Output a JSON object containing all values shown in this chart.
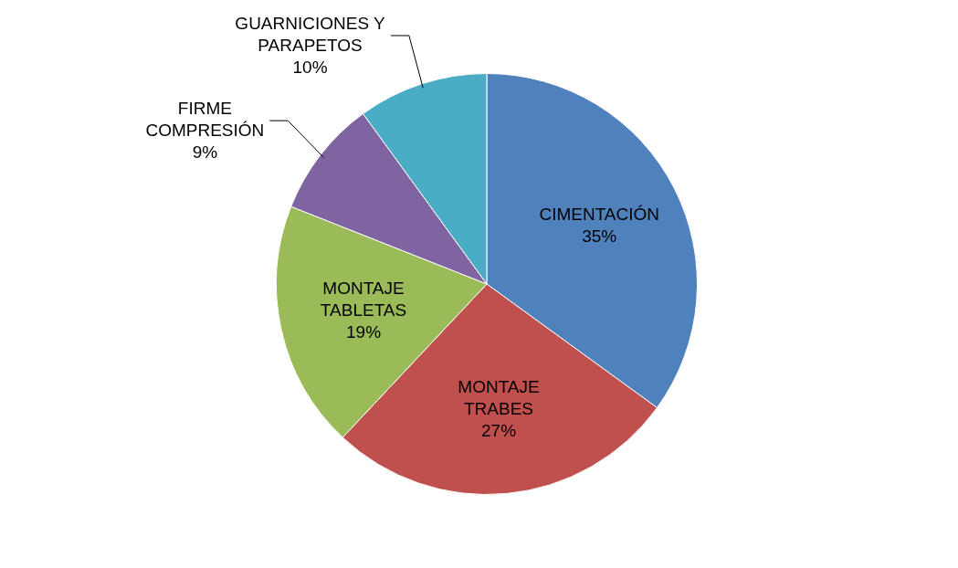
{
  "chart_data": {
    "type": "pie",
    "categories": [
      "CIMENTACIÓN",
      "MONTAJE TRABES",
      "MONTAJE TABLETAS",
      "FIRME COMPRESIÓN",
      "GUARNICIONES Y PARAPETOS"
    ],
    "values": [
      35,
      27,
      19,
      9,
      10
    ],
    "colors": [
      "#4f81bd",
      "#c0504d",
      "#9bbb59",
      "#8064a2",
      "#4bacc6"
    ],
    "value_labels": [
      "35%",
      "27%",
      "19%",
      "9%",
      "10%"
    ],
    "legend": false
  }
}
